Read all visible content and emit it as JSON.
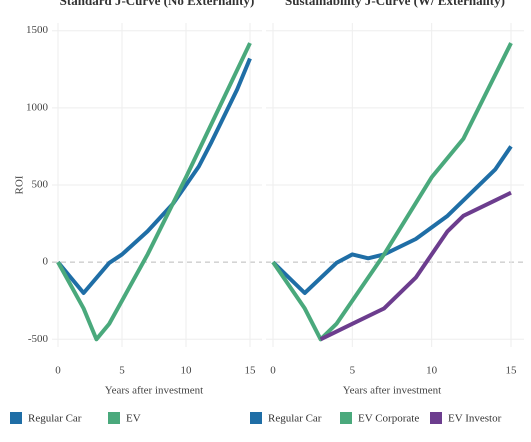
{
  "chart_data": [
    {
      "type": "line",
      "title": "Standard J-Curve (No Externality)",
      "xlabel": "Years after investment",
      "ylabel": "ROI",
      "xlim": [
        0,
        15
      ],
      "xticks": [
        0,
        5,
        10,
        15
      ],
      "ylim": [
        -550,
        1550
      ],
      "yticks": [
        -500,
        0,
        500,
        1000,
        1500
      ],
      "grid": true,
      "series": [
        {
          "name": "Regular Car",
          "color": "#1f6ea6",
          "x": [
            0,
            2,
            4,
            5,
            7,
            9,
            11,
            12,
            14,
            15
          ],
          "values": [
            0,
            -200,
            -5,
            50,
            200,
            380,
            620,
            780,
            1120,
            1320
          ]
        },
        {
          "name": "EV",
          "color": "#4aa97c",
          "x": [
            0,
            2,
            3,
            4,
            7,
            10,
            15
          ],
          "values": [
            0,
            -300,
            -500,
            -400,
            50,
            550,
            1420
          ]
        }
      ]
    },
    {
      "type": "line",
      "title": "Sustainability J-Curve (W/ Externality)",
      "xlabel": "Years after investment",
      "xlim": [
        0,
        15
      ],
      "xticks": [
        0,
        5,
        10,
        15
      ],
      "ylim": [
        -550,
        1550
      ],
      "yticks": [
        -500,
        0,
        500,
        1000,
        1500
      ],
      "grid": true,
      "series": [
        {
          "name": "Regular Car",
          "color": "#1f6ea6",
          "x": [
            0,
            2,
            4,
            5,
            6,
            7,
            9,
            11,
            14,
            15
          ],
          "values": [
            0,
            -200,
            -5,
            50,
            25,
            50,
            150,
            300,
            600,
            750
          ]
        },
        {
          "name": "EV Corporate",
          "color": "#4aa97c",
          "x": [
            0,
            2,
            3,
            4,
            7,
            10,
            12,
            15
          ],
          "values": [
            0,
            -300,
            -500,
            -400,
            50,
            550,
            800,
            1420
          ]
        },
        {
          "name": "EV Investor",
          "color": "#6c3d8e",
          "x": [
            3,
            5,
            7,
            9,
            11,
            12,
            14,
            15
          ],
          "values": [
            -500,
            -400,
            -300,
            -100,
            200,
            300,
            400,
            450
          ]
        }
      ]
    }
  ]
}
